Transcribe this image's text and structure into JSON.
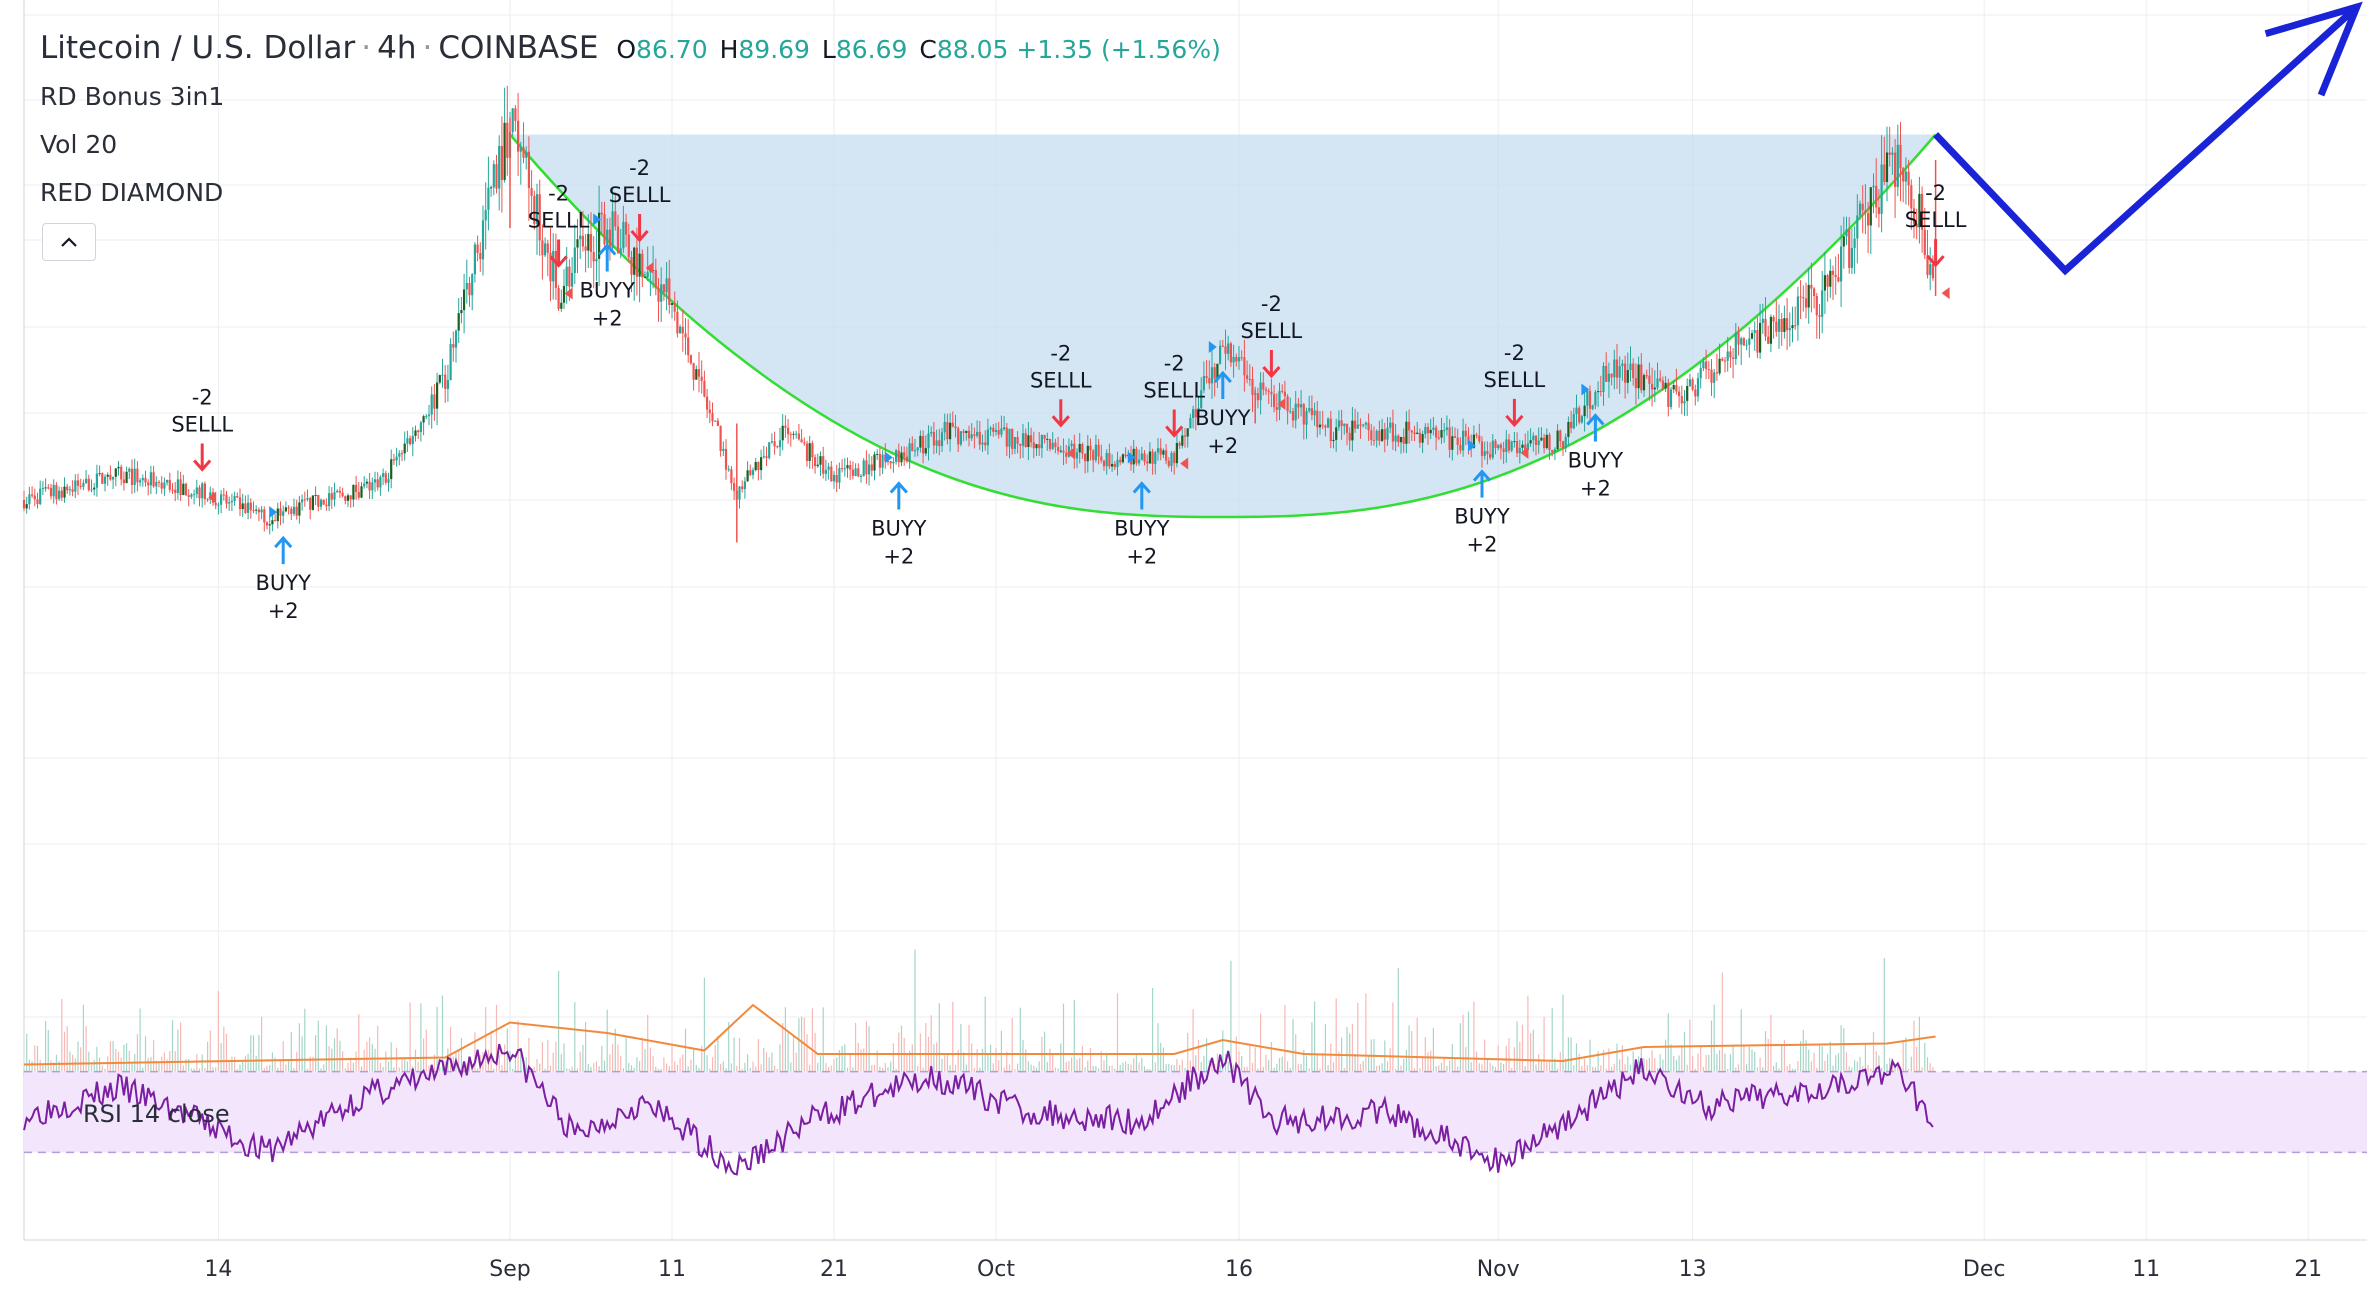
{
  "legend": {
    "symbol": "Litecoin / U.S. Dollar",
    "interval": "4h",
    "exchange": "COINBASE",
    "o_label": "O",
    "o_value": "86.70",
    "h_label": "H",
    "h_value": "89.69",
    "l_label": "L",
    "l_value": "86.69",
    "c_label": "C",
    "c_value": "88.05",
    "change": "+1.35 (+1.56%)",
    "indicator1": "RD Bonus 3in1",
    "indicator2": "Vol 20",
    "indicator3": "RED DIAMOND",
    "collapse_icon": "chevron-up-icon"
  },
  "rsi_label": "RSI 14 close",
  "colors": {
    "up": "#26a69a",
    "up_dark": "#1b5e20",
    "down": "#ef5350",
    "buy_arrow": "#2196f3",
    "sell_arrow": "#f23645",
    "cup_fill": "#c6dcf0",
    "cup_curve": "#33dd33",
    "projection": "#1a24d6",
    "volume_ma": "#f28a3c",
    "rsi_line": "#7b1fa2",
    "rsi_band": "#f3e5fb",
    "grid": "#eceef2"
  },
  "chart_data": {
    "type": "candlestick",
    "title": "Litecoin / U.S. Dollar · 4h · COINBASE",
    "x_ticks": [
      "14",
      "Sep",
      "11",
      "21",
      "Oct",
      "16",
      "Nov",
      "13",
      "Dec",
      "11",
      "21"
    ],
    "price_series": [
      {
        "date": "Aug 2",
        "value": 63
      },
      {
        "date": "Aug 8",
        "value": 66
      },
      {
        "date": "Aug 13",
        "value": 64
      },
      {
        "date": "Aug 17",
        "value": 61
      },
      {
        "date": "Aug 24",
        "value": 65
      },
      {
        "date": "Aug 28",
        "value": 77
      },
      {
        "date": "Sep 1",
        "value": 108
      },
      {
        "date": "Sep 4",
        "value": 88
      },
      {
        "date": "Sep 7",
        "value": 96
      },
      {
        "date": "Sep 11",
        "value": 86
      },
      {
        "date": "Sep 15",
        "value": 64
      },
      {
        "date": "Sep 18",
        "value": 71
      },
      {
        "date": "Sep 21",
        "value": 66
      },
      {
        "date": "Sep 25",
        "value": 68
      },
      {
        "date": "Sep 28",
        "value": 71
      },
      {
        "date": "Oct 3",
        "value": 70
      },
      {
        "date": "Oct 8",
        "value": 68
      },
      {
        "date": "Oct 12",
        "value": 68
      },
      {
        "date": "Oct 15",
        "value": 81
      },
      {
        "date": "Oct 17",
        "value": 76
      },
      {
        "date": "Oct 22",
        "value": 71
      },
      {
        "date": "Oct 27",
        "value": 71
      },
      {
        "date": "Nov 1",
        "value": 69
      },
      {
        "date": "Nov 5",
        "value": 70
      },
      {
        "date": "Nov 8",
        "value": 79
      },
      {
        "date": "Nov 12",
        "value": 75
      },
      {
        "date": "Nov 15",
        "value": 80
      },
      {
        "date": "Nov 21",
        "value": 87
      },
      {
        "date": "Nov 26",
        "value": 104
      },
      {
        "date": "Nov 28",
        "value": 88.05
      }
    ],
    "signals": [
      {
        "type": "sell",
        "text1": "-2",
        "text2": "SELLL",
        "date": "Aug 13"
      },
      {
        "type": "buy",
        "text1": "BUYY",
        "text2": "+2",
        "date": "Aug 18"
      },
      {
        "type": "sell",
        "text1": "-2",
        "text2": "SELLL",
        "date": "Sep 4"
      },
      {
        "type": "buy",
        "text1": "BUYY",
        "text2": "+2",
        "date": "Sep 7"
      },
      {
        "type": "sell",
        "text1": "-2",
        "text2": "SELLL",
        "date": "Sep 9"
      },
      {
        "type": "buy",
        "text1": "BUYY",
        "text2": "+2",
        "date": "Sep 25"
      },
      {
        "type": "sell",
        "text1": "-2",
        "text2": "SELLL",
        "date": "Oct 5"
      },
      {
        "type": "sell",
        "text1": "-2",
        "text2": "SELLL",
        "date": "Oct 12"
      },
      {
        "type": "buy",
        "text1": "BUYY",
        "text2": "+2",
        "date": "Oct 10"
      },
      {
        "type": "buy",
        "text1": "BUYY",
        "text2": "+2",
        "date": "Oct 15"
      },
      {
        "type": "sell",
        "text1": "-2",
        "text2": "SELLL",
        "date": "Oct 18"
      },
      {
        "type": "sell",
        "text1": "-2",
        "text2": "SELLL",
        "date": "Nov 2"
      },
      {
        "type": "buy",
        "text1": "BUYY",
        "text2": "+2",
        "date": "Oct 31"
      },
      {
        "type": "buy",
        "text1": "BUYY",
        "text2": "+2",
        "date": "Nov 7"
      },
      {
        "type": "sell",
        "text1": "-2",
        "text2": "SELLL",
        "date": "Nov 28"
      }
    ],
    "cup_pattern": {
      "rim_left_date": "Sep 1",
      "bottom_date": "Oct 15",
      "rim_right_date": "Nov 28",
      "rim_price": 106,
      "bottom_price": 61
    },
    "projection": [
      {
        "date": "Nov 28",
        "value": 106
      },
      {
        "date": "Dec 6",
        "value": 90
      },
      {
        "date": "Dec 24",
        "value": 121
      }
    ],
    "volume_ma": [
      {
        "date": "Aug 2",
        "value": 0.15
      },
      {
        "date": "Aug 28",
        "value": 0.25
      },
      {
        "date": "Sep 1",
        "value": 0.75
      },
      {
        "date": "Sep 7",
        "value": 0.6
      },
      {
        "date": "Sep 13",
        "value": 0.35
      },
      {
        "date": "Sep 16",
        "value": 1.0
      },
      {
        "date": "Sep 20",
        "value": 0.3
      },
      {
        "date": "Oct 12",
        "value": 0.3
      },
      {
        "date": "Oct 15",
        "value": 0.5
      },
      {
        "date": "Oct 20",
        "value": 0.3
      },
      {
        "date": "Nov 5",
        "value": 0.2
      },
      {
        "date": "Nov 10",
        "value": 0.4
      },
      {
        "date": "Nov 25",
        "value": 0.45
      },
      {
        "date": "Nov 28",
        "value": 0.55
      }
    ],
    "rsi": {
      "overbought": 70,
      "oversold": 30,
      "values": [
        {
          "date": "Aug 2",
          "value": 48
        },
        {
          "date": "Aug 8",
          "value": 62
        },
        {
          "date": "Aug 13",
          "value": 45
        },
        {
          "date": "Aug 17",
          "value": 30
        },
        {
          "date": "Aug 23",
          "value": 58
        },
        {
          "date": "Aug 28",
          "value": 70
        },
        {
          "date": "Sep 1",
          "value": 82
        },
        {
          "date": "Sep 5",
          "value": 38
        },
        {
          "date": "Sep 9",
          "value": 55
        },
        {
          "date": "Sep 12",
          "value": 40
        },
        {
          "date": "Sep 15",
          "value": 22
        },
        {
          "date": "Sep 20",
          "value": 48
        },
        {
          "date": "Sep 27",
          "value": 68
        },
        {
          "date": "Oct 3",
          "value": 50
        },
        {
          "date": "Oct 10",
          "value": 45
        },
        {
          "date": "Oct 15",
          "value": 78
        },
        {
          "date": "Oct 18",
          "value": 45
        },
        {
          "date": "Oct 25",
          "value": 50
        },
        {
          "date": "Nov 1",
          "value": 25
        },
        {
          "date": "Nov 7",
          "value": 55
        },
        {
          "date": "Nov 10",
          "value": 72
        },
        {
          "date": "Nov 14",
          "value": 52
        },
        {
          "date": "Nov 20",
          "value": 62
        },
        {
          "date": "Nov 26",
          "value": 70
        },
        {
          "date": "Nov 28",
          "value": 40
        }
      ]
    }
  }
}
